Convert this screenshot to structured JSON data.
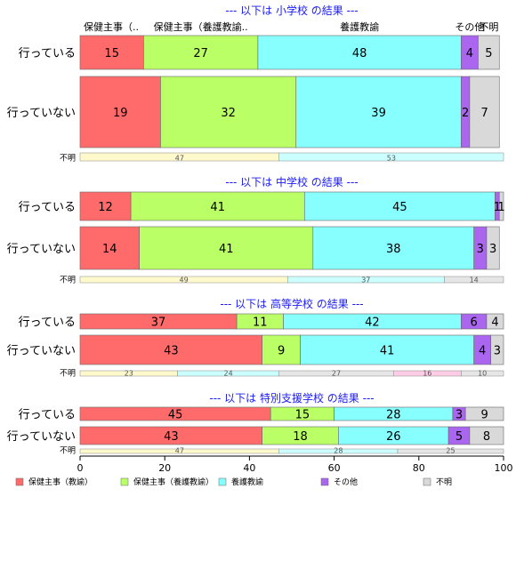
{
  "chart_data": {
    "type": "bar",
    "orientation": "horizontal",
    "stacked": true,
    "percent": true,
    "xlim": [
      0,
      100
    ],
    "xticks": [
      0,
      20,
      40,
      60,
      80,
      100
    ],
    "grid": false,
    "legend_position": "bottom",
    "categories": [
      "保健主事（教諭）",
      "保健主事（養護教諭）",
      "養護教諭",
      "その他",
      "不明"
    ],
    "category_header_labels": [
      "保健主事（..",
      "保健主事（養護教諭..",
      "養護教諭",
      "その他",
      "不明"
    ],
    "colors": [
      "#ff6b6b",
      "#bbff66",
      "#88ffff",
      "#aa66ee",
      "#d9d9d9"
    ],
    "unknown_label": "不明",
    "unknown_colors": [
      "#fff9cc",
      "#ccffff",
      "#e6e6e6",
      "#ffcce6",
      "#e6e6e6"
    ],
    "sections": [
      {
        "title": "--- 以下は 小学校 の結果 ---",
        "rows": [
          {
            "label": "行っている",
            "values": [
              15,
              27,
              48,
              4,
              5
            ]
          },
          {
            "label": "行っていない",
            "values": [
              19,
              32,
              39,
              2,
              7
            ]
          }
        ],
        "unknown": [
          47,
          53
        ]
      },
      {
        "title": "--- 以下は 中学校 の結果 ---",
        "rows": [
          {
            "label": "行っている",
            "values": [
              12,
              41,
              45,
              1,
              1
            ]
          },
          {
            "label": "行っていない",
            "values": [
              14,
              41,
              38,
              3,
              3
            ]
          }
        ],
        "unknown": [
          49,
          37,
          14
        ]
      },
      {
        "title": "--- 以下は 高等学校 の結果 ---",
        "rows": [
          {
            "label": "行っている",
            "values": [
              37,
              11,
              42,
              6,
              4
            ]
          },
          {
            "label": "行っていない",
            "values": [
              43,
              9,
              41,
              4,
              3
            ]
          }
        ],
        "unknown": [
          23,
          24,
          27,
          16,
          10
        ]
      },
      {
        "title": "--- 以下は 特別支援学校 の結果 ---",
        "rows": [
          {
            "label": "行っている",
            "values": [
              45,
              15,
              28,
              3,
              9
            ]
          },
          {
            "label": "行っていない",
            "values": [
              43,
              18,
              26,
              5,
              8
            ]
          }
        ],
        "unknown": [
          47,
          28,
          25
        ]
      }
    ]
  }
}
